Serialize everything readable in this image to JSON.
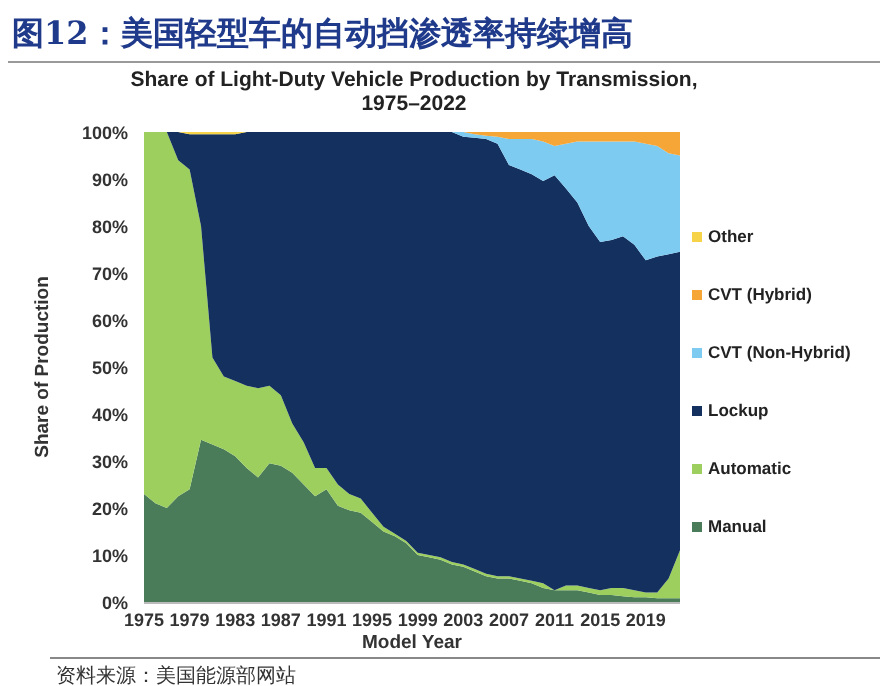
{
  "chart_data": {
    "type": "area",
    "stacked": true,
    "title": "图12：美国轻型车的自动挡渗透率持续增高",
    "subtitle": "Share of Light-Duty Vehicle Production by Transmission,\n1975–2022",
    "xlabel": "Model Year",
    "ylabel": "Share of Production",
    "annotations": [
      "资料来源：美国能源部网站"
    ],
    "x": [
      1975,
      1976,
      1977,
      1978,
      1979,
      1980,
      1981,
      1982,
      1983,
      1984,
      1985,
      1986,
      1987,
      1988,
      1989,
      1990,
      1991,
      1992,
      1993,
      1994,
      1995,
      1996,
      1997,
      1998,
      1999,
      2000,
      2001,
      2002,
      2003,
      2004,
      2005,
      2006,
      2007,
      2008,
      2009,
      2010,
      2011,
      2012,
      2013,
      2014,
      2015,
      2016,
      2017,
      2018,
      2019,
      2020,
      2021,
      2022
    ],
    "xlim": [
      1975,
      2022
    ],
    "xticks": [
      1975,
      1979,
      1983,
      1987,
      1991,
      1995,
      1999,
      2003,
      2007,
      2011,
      2015,
      2019
    ],
    "ylim": [
      0,
      100
    ],
    "yticks": [
      {
        "value": 0,
        "label": "0%"
      },
      {
        "value": 10,
        "label": "10%"
      },
      {
        "value": 20,
        "label": "20%"
      },
      {
        "value": 30,
        "label": "30%"
      },
      {
        "value": 40,
        "label": "40%"
      },
      {
        "value": 50,
        "label": "50%"
      },
      {
        "value": 60,
        "label": "60%"
      },
      {
        "value": 70,
        "label": "70%"
      },
      {
        "value": 80,
        "label": "80%"
      },
      {
        "value": 90,
        "label": "90%"
      },
      {
        "value": 100,
        "label": "100%"
      }
    ],
    "legend": "right",
    "series": [
      {
        "name": "Manual",
        "color": "#4a7c59",
        "values": [
          23,
          21,
          20,
          22.5,
          24,
          34.5,
          33.5,
          32.5,
          31,
          28.5,
          26.5,
          29.5,
          29,
          27.5,
          25,
          22.5,
          24,
          20.5,
          19.5,
          19,
          17,
          15,
          14,
          12.5,
          10,
          9.5,
          9,
          8,
          7.5,
          6.5,
          5.5,
          5,
          5,
          4.5,
          4,
          3,
          2.5,
          2.5,
          2.5,
          2,
          1.5,
          1.5,
          1.2,
          1,
          1,
          0.8,
          0.8,
          0.8
        ]
      },
      {
        "name": "Automatic",
        "color": "#9dcf5f",
        "values": [
          77,
          79,
          80,
          71.5,
          68,
          45.5,
          18.5,
          15.5,
          16,
          17.5,
          19,
          16.5,
          15,
          10.5,
          9,
          6,
          4.5,
          4.5,
          3.5,
          3,
          2,
          1,
          0.5,
          0.5,
          0.5,
          0.5,
          0.5,
          0.5,
          0.5,
          0.5,
          0.5,
          0.5,
          0.5,
          0.5,
          0.5,
          1,
          0,
          1,
          1,
          1,
          1,
          1.5,
          1.8,
          1.5,
          1,
          1.2,
          4.2,
          10.2
        ]
      },
      {
        "name": "Lockup",
        "color": "#14305e",
        "values": [
          0,
          0,
          0,
          6,
          7.5,
          19.5,
          47.5,
          51.5,
          52.5,
          54,
          54.5,
          54,
          56,
          62,
          66,
          71.5,
          71.5,
          75,
          77,
          78,
          81,
          84,
          85.5,
          87,
          89.5,
          90,
          90.5,
          91.5,
          91,
          91.8,
          92.5,
          92,
          87.5,
          87,
          86.5,
          85.6,
          88.3,
          84.5,
          81.5,
          77,
          74.1,
          74,
          74.8,
          73.5,
          70.7,
          71.5,
          69,
          63.5
        ]
      },
      {
        "name": "CVT (Non-Hybrid)",
        "color": "#7ecbf2",
        "values": [
          0,
          0,
          0,
          0,
          0,
          0,
          0,
          0,
          0,
          0,
          0,
          0,
          0,
          0,
          0,
          0,
          0,
          0,
          0,
          0,
          0,
          0,
          0,
          0,
          0,
          0,
          0,
          0,
          1,
          0.7,
          0.7,
          1.5,
          5.5,
          6.5,
          7.5,
          8.4,
          6.2,
          9.5,
          13,
          18,
          21.4,
          21,
          20.2,
          22,
          24.8,
          23.5,
          21.5,
          20.5
        ]
      },
      {
        "name": "CVT (Hybrid)",
        "color": "#f5a636",
        "values": [
          0,
          0,
          0,
          0,
          0,
          0,
          0,
          0,
          0,
          0,
          0,
          0,
          0,
          0,
          0,
          0,
          0,
          0,
          0,
          0,
          0,
          0,
          0,
          0,
          0,
          0,
          0,
          0,
          0,
          0.5,
          0.8,
          1,
          1.5,
          1.5,
          1.5,
          2,
          3,
          2.5,
          2,
          2,
          2,
          2,
          2,
          2,
          2.5,
          3,
          4.5,
          5
        ]
      },
      {
        "name": "Other",
        "color": "#f7d34a",
        "values": [
          0,
          0,
          0,
          0,
          0.5,
          0.5,
          0.5,
          0.5,
          0.5,
          0,
          0,
          0,
          0,
          0,
          0,
          0,
          0,
          0,
          0,
          0,
          0,
          0,
          0,
          0,
          0,
          0,
          0,
          0,
          0,
          0,
          0,
          0,
          0,
          0,
          0,
          0,
          0,
          0,
          0,
          0,
          0,
          0,
          0,
          0,
          0,
          0,
          0,
          0
        ]
      }
    ]
  }
}
